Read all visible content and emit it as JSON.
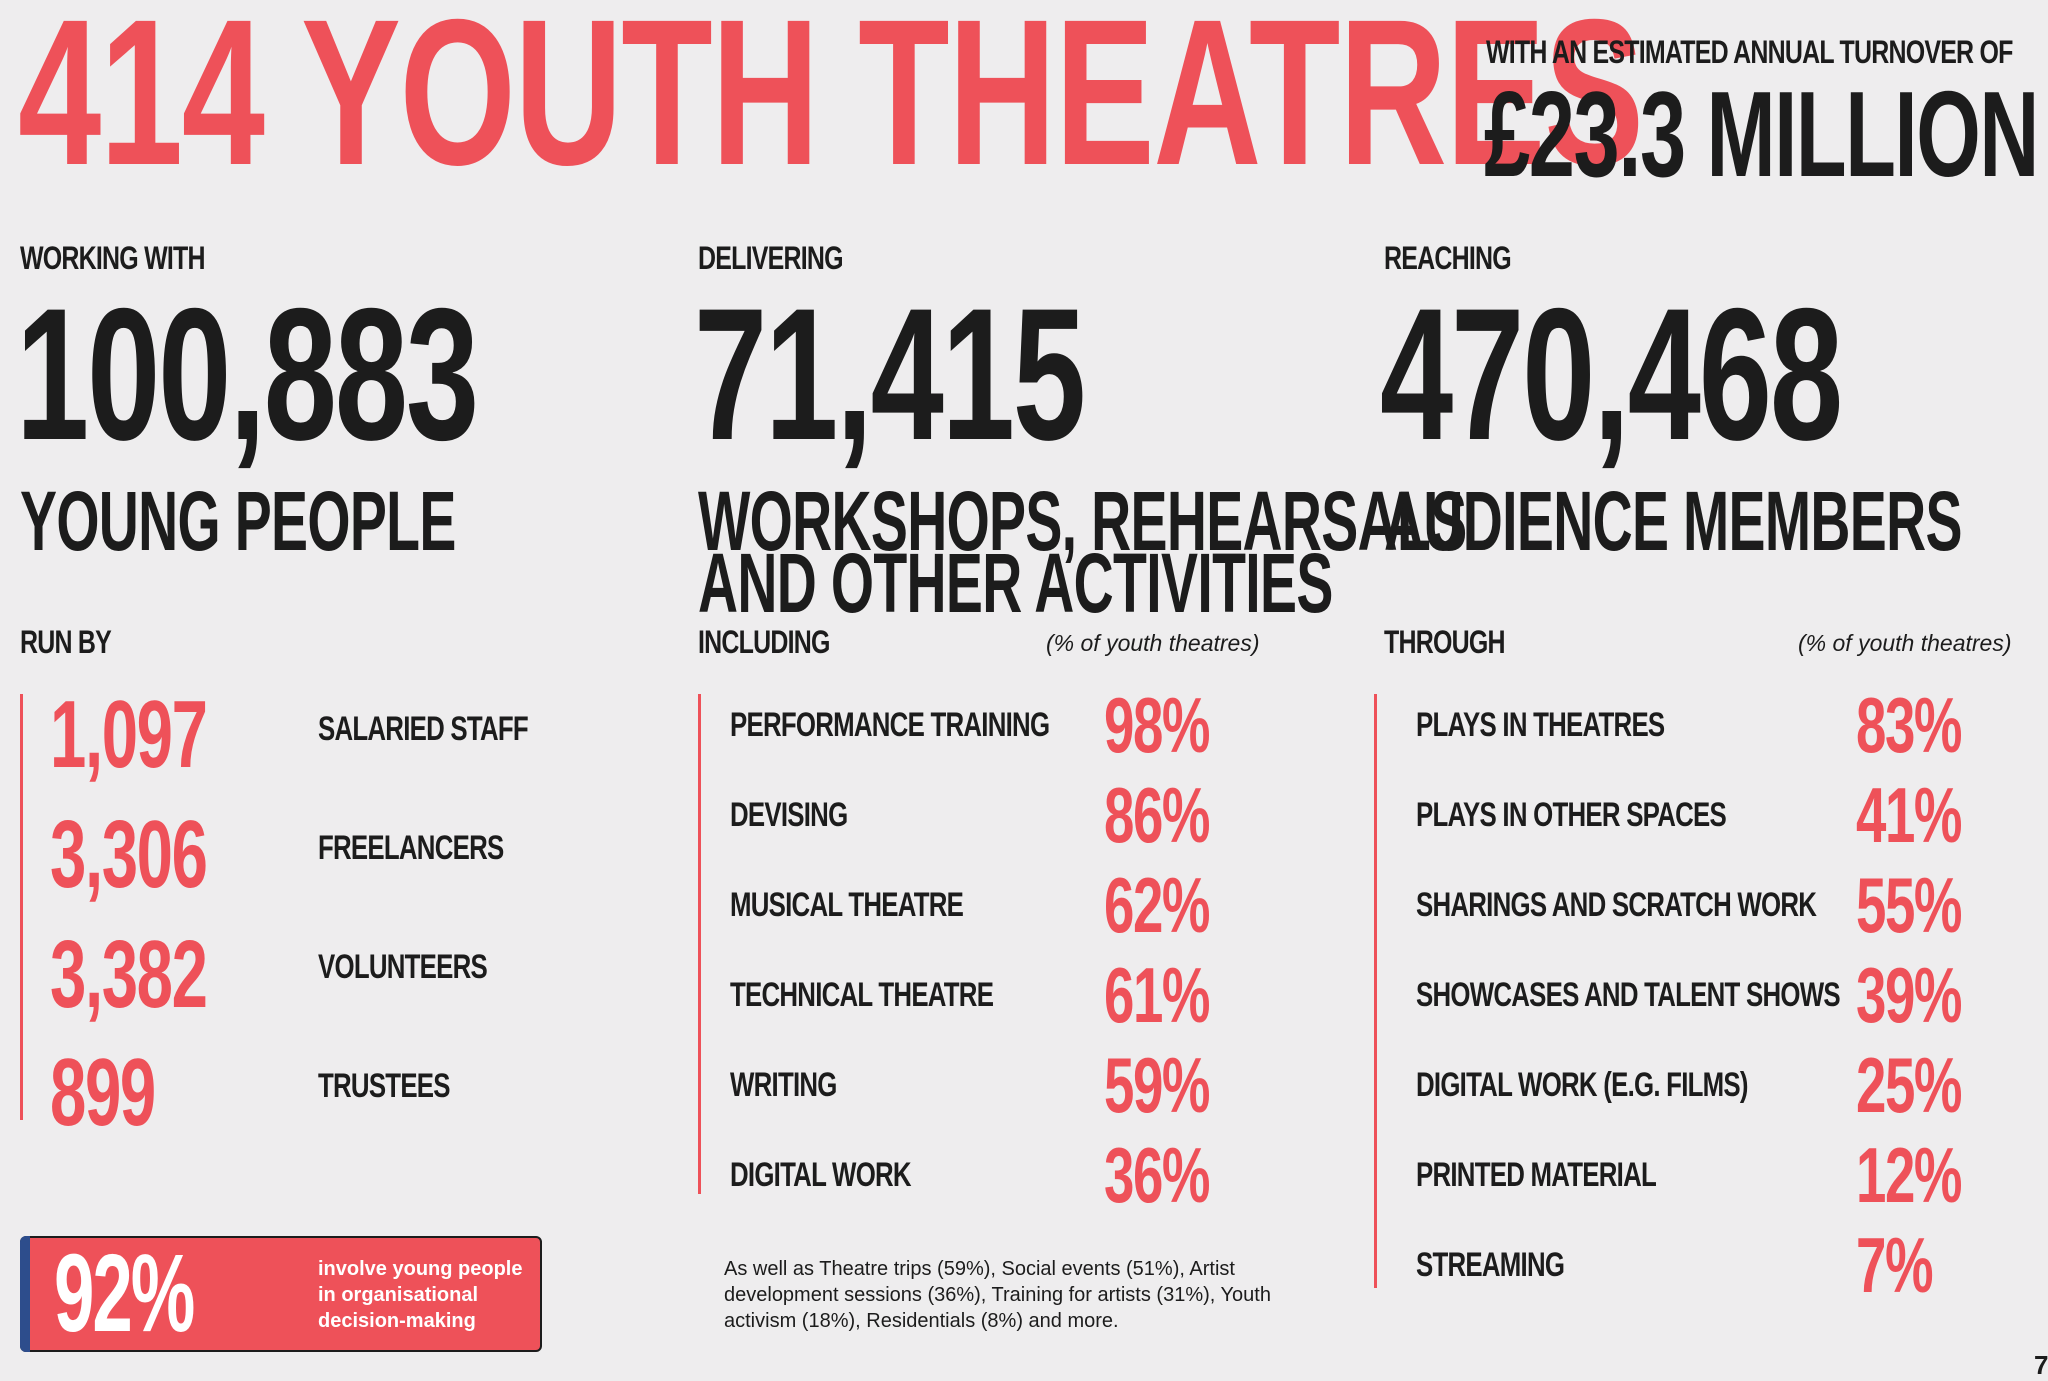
{
  "headline": {
    "title": "414 YOUTH THEATRES",
    "turnover_label": "WITH AN ESTIMATED ANNUAL TURNOVER OF",
    "turnover_value": "£23.3 MILLION"
  },
  "columns": [
    {
      "label": "WORKING WITH",
      "number": "100,883",
      "subtitle_lines": [
        "YOUNG PEOPLE"
      ]
    },
    {
      "label": "DELIVERING",
      "number": "71,415",
      "subtitle_lines": [
        "WORKSHOPS, REHEARSALS",
        "AND OTHER ACTIVITIES"
      ]
    },
    {
      "label": "REACHING",
      "number": "470,468",
      "subtitle_lines": [
        "AUDIENCE MEMBERS"
      ]
    }
  ],
  "run_by": {
    "label": "RUN BY",
    "items": [
      {
        "value": "1,097",
        "label": "SALARIED STAFF"
      },
      {
        "value": "3,306",
        "label": "FREELANCERS"
      },
      {
        "value": "3,382",
        "label": "VOLUNTEERS"
      },
      {
        "value": "899",
        "label": "TRUSTEES"
      }
    ]
  },
  "including": {
    "label": "INCLUDING",
    "note": "(% of youth theatres)",
    "items": [
      {
        "label": "PERFORMANCE TRAINING",
        "pct": "98%"
      },
      {
        "label": "DEVISING",
        "pct": "86%"
      },
      {
        "label": "MUSICAL THEATRE",
        "pct": "62%"
      },
      {
        "label": "TECHNICAL THEATRE",
        "pct": "61%"
      },
      {
        "label": "WRITING",
        "pct": "59%"
      },
      {
        "label": "DIGITAL WORK",
        "pct": "36%"
      }
    ],
    "footnote": "As well as Theatre trips (59%), Social events (51%), Artist development sessions (36%), Training for artists (31%), Youth activism (18%), Residentials (8%) and more."
  },
  "through": {
    "label": "THROUGH",
    "note": "(% of youth theatres)",
    "items": [
      {
        "label": "PLAYS IN THEATRES",
        "pct": "83%"
      },
      {
        "label": "PLAYS IN OTHER SPACES",
        "pct": "41%"
      },
      {
        "label": "SHARINGS AND SCRATCH WORK",
        "pct": "55%"
      },
      {
        "label": "SHOWCASES AND TALENT SHOWS",
        "pct": "39%"
      },
      {
        "label": "DIGITAL WORK (E.G. FILMS)",
        "pct": "25%"
      },
      {
        "label": "PRINTED MATERIAL",
        "pct": "12%"
      },
      {
        "label": "STREAMING",
        "pct": "7%"
      }
    ]
  },
  "involve": {
    "pct": "92%",
    "text": "involve young people in organisational decision-making"
  },
  "page_number": "7",
  "colors": {
    "accent": "#ee5159",
    "text": "#1c1c1c",
    "background": "#eeedee"
  }
}
